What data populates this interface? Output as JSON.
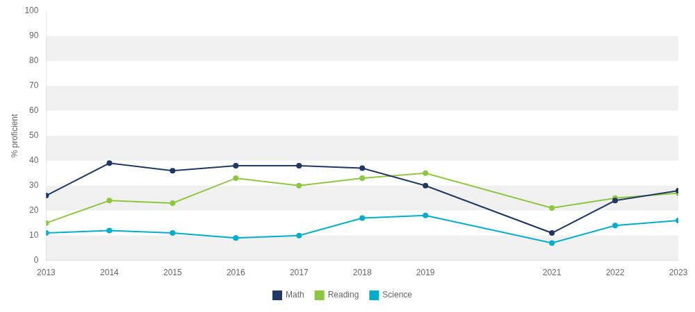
{
  "chart_data": {
    "type": "line",
    "x": [
      2013,
      2014,
      2015,
      2016,
      2017,
      2018,
      2019,
      2021,
      2022,
      2023
    ],
    "series": [
      {
        "name": "Math",
        "color": "#1f3864",
        "values": [
          26,
          39,
          36,
          38,
          38,
          37,
          30,
          11,
          24,
          28
        ]
      },
      {
        "name": "Reading",
        "color": "#8dc63f",
        "values": [
          15,
          24,
          23,
          33,
          30,
          33,
          35,
          21,
          25,
          27
        ]
      },
      {
        "name": "Science",
        "color": "#00aecc",
        "values": [
          11,
          12,
          11,
          9,
          10,
          17,
          18,
          7,
          14,
          16
        ]
      }
    ],
    "ylabel": "% proficient",
    "xlim": [
      2013,
      2023
    ],
    "xticks": [
      2013,
      2014,
      2015,
      2016,
      2017,
      2018,
      2019,
      2021,
      2022,
      2023
    ],
    "ylim": [
      0,
      100
    ],
    "yticks": [
      0,
      10,
      20,
      30,
      40,
      50,
      60,
      70,
      80,
      90,
      100
    ],
    "marker": "circle",
    "grid": false,
    "legend": "bottom"
  }
}
